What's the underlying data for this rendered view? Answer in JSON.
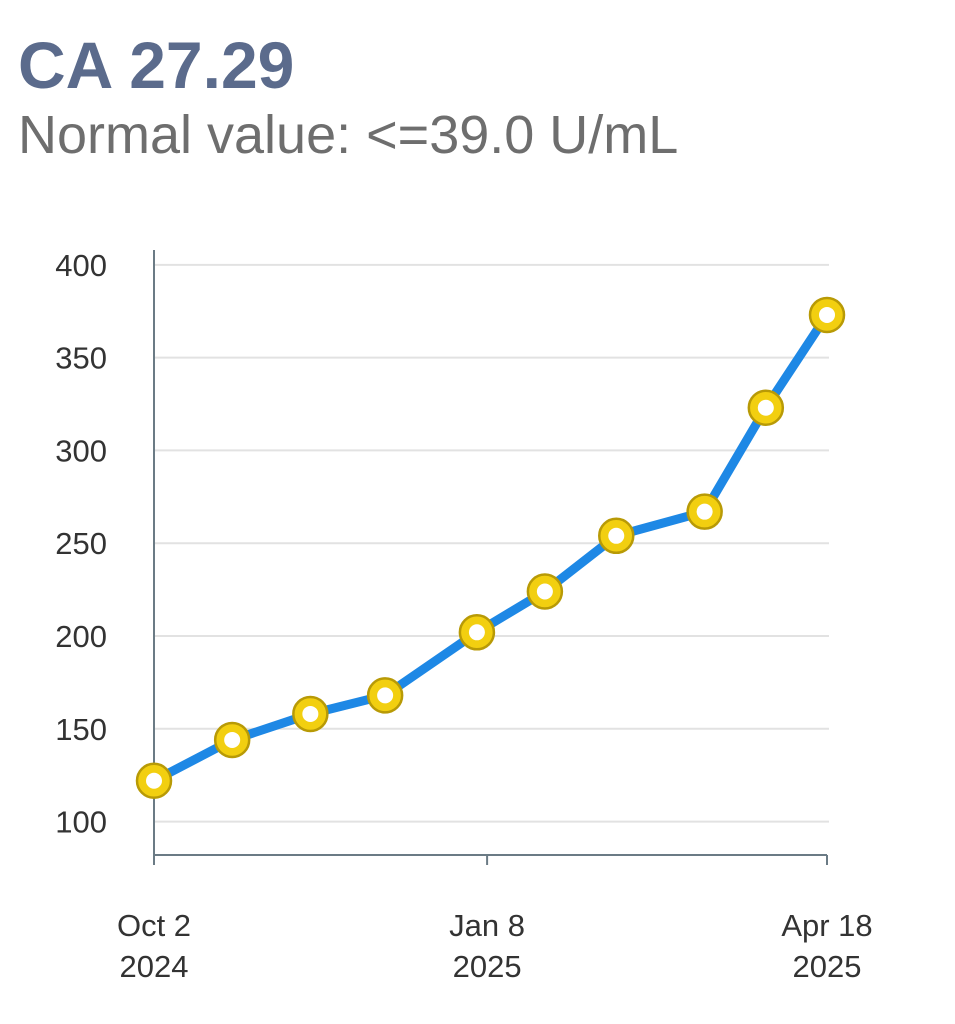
{
  "header": {
    "title": "CA 27.29",
    "subtitle": "Normal value: <=39.0 U/mL"
  },
  "colors": {
    "line": "#1e88e5",
    "marker_fill": "#f2cf10",
    "marker_stroke": "#b89a06",
    "marker_center": "#ffffff",
    "grid": "#e2e2e2",
    "axis": "#6b7b85"
  },
  "chart_data": {
    "type": "line",
    "title": "CA 27.29",
    "subtitle": "Normal value: <=39.0 U/mL",
    "x": [
      "2024-10-02",
      "2024-10-25",
      "2024-11-17",
      "2024-12-09",
      "2025-01-05",
      "2025-01-25",
      "2025-02-15",
      "2025-03-13",
      "2025-03-31",
      "2025-04-18"
    ],
    "series": [
      {
        "values": [
          122,
          144,
          158,
          168,
          202,
          224,
          254,
          267,
          323,
          373
        ]
      }
    ],
    "x_ticks": [
      {
        "date": "2024-10-02",
        "line1": "Oct 2",
        "line2": "2024"
      },
      {
        "date": "2025-01-08",
        "line1": "Jan 8",
        "line2": "2025"
      },
      {
        "date": "2025-04-18",
        "line1": "Apr 18",
        "line2": "2025"
      }
    ],
    "y_ticks": [
      100,
      150,
      200,
      250,
      300,
      350,
      400
    ],
    "ylim": [
      82,
      408
    ],
    "xlim": [
      "2024-10-02",
      "2025-04-18"
    ],
    "grid": true,
    "legend": "none"
  }
}
